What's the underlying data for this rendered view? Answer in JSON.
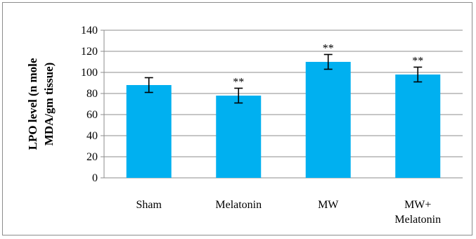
{
  "chart_data": {
    "type": "bar",
    "title": "",
    "xlabel": "",
    "ylabel_lines": [
      "LPO level (n mole",
      "MDA/gm tissue)"
    ],
    "categories": [
      [
        "Sham"
      ],
      [
        "Melatonin"
      ],
      [
        "MW"
      ],
      [
        "MW+",
        "Melatonin"
      ]
    ],
    "values": [
      88,
      78,
      110,
      98
    ],
    "error": [
      7,
      7,
      7,
      7
    ],
    "annotations": [
      "",
      "**",
      "**",
      "**"
    ],
    "ylim": [
      0,
      140
    ],
    "yticks": [
      0,
      20,
      40,
      60,
      80,
      100,
      120,
      140
    ],
    "grid": true,
    "legend": "none",
    "bar_color": "#00b0f0"
  }
}
